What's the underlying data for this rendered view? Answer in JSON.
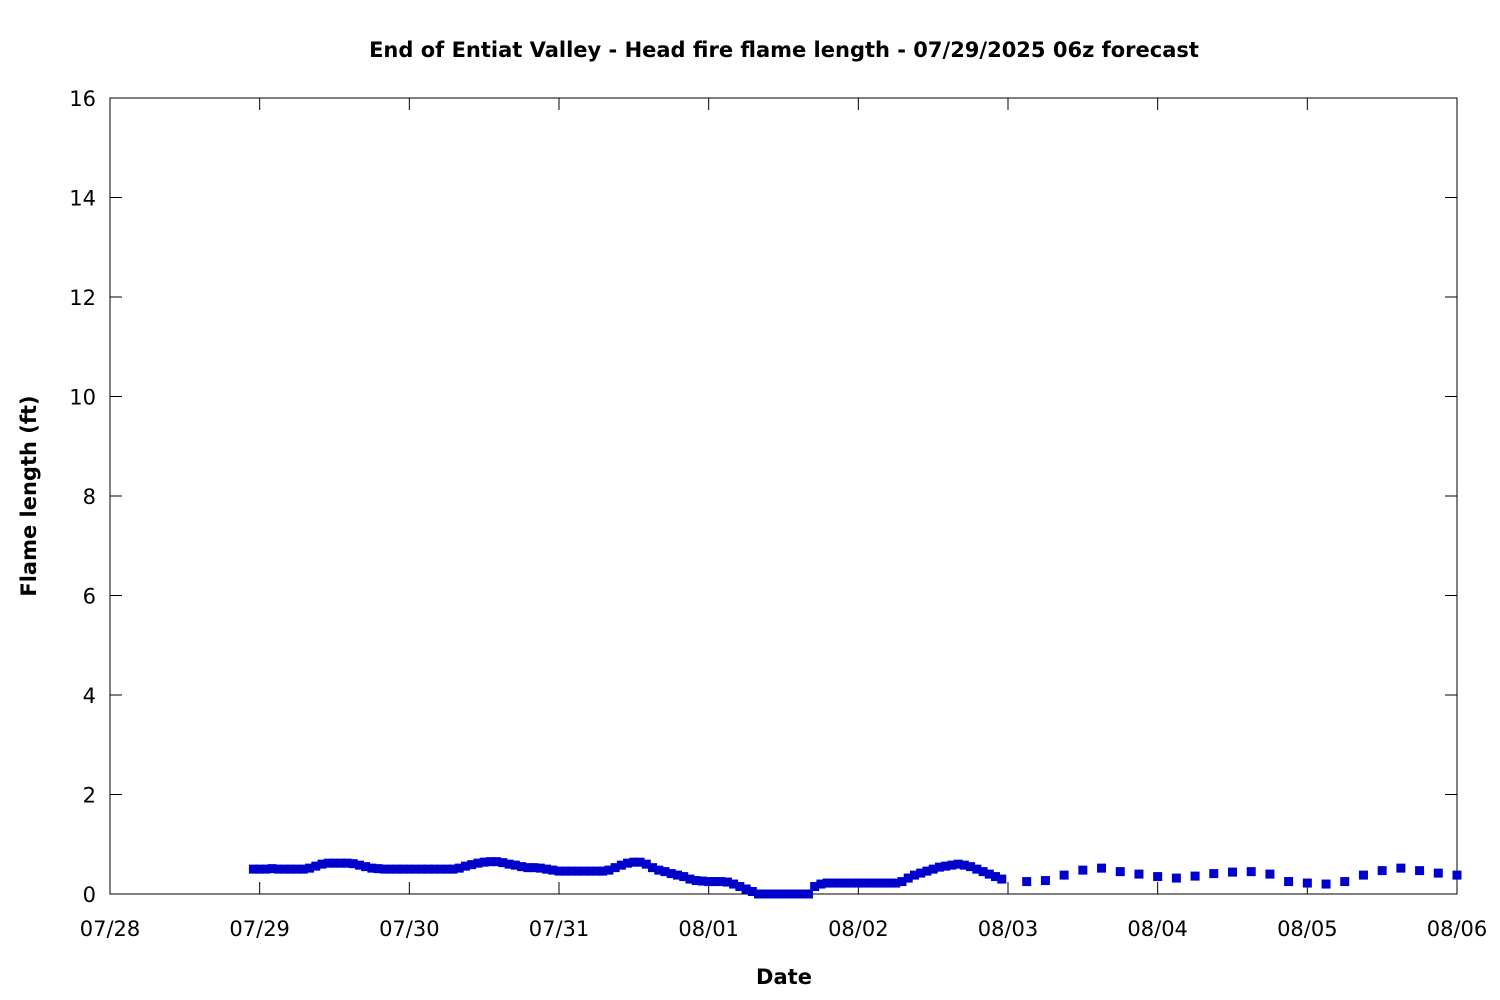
{
  "chart_data": {
    "type": "scatter",
    "title": "End of Entiat Valley - Head fire flame length - 07/29/2025 06z forecast",
    "xlabel": "Date",
    "ylabel": "Flame length (ft)",
    "xlim": [
      "2025-07-28T00:00",
      "2025-08-06T00:00"
    ],
    "ylim": [
      0,
      16
    ],
    "x_ticks": [
      "07/28",
      "07/29",
      "07/30",
      "07/31",
      "08/01",
      "08/02",
      "08/03",
      "08/04",
      "08/05",
      "08/06"
    ],
    "y_ticks": [
      "0",
      "2",
      "4",
      "6",
      "8",
      "10",
      "12",
      "14",
      "16"
    ],
    "grid": false,
    "marker": "square",
    "color": "#0000cc",
    "series": [
      {
        "name": "",
        "points": [
          [
            "2025-07-28T23:00",
            0.5
          ],
          [
            "2025-07-29T00:00",
            0.5
          ],
          [
            "2025-07-29T01:00",
            0.5
          ],
          [
            "2025-07-29T02:00",
            0.51
          ],
          [
            "2025-07-29T03:00",
            0.5
          ],
          [
            "2025-07-29T04:00",
            0.5
          ],
          [
            "2025-07-29T05:00",
            0.5
          ],
          [
            "2025-07-29T06:00",
            0.5
          ],
          [
            "2025-07-29T07:00",
            0.5
          ],
          [
            "2025-07-29T08:00",
            0.52
          ],
          [
            "2025-07-29T09:00",
            0.56
          ],
          [
            "2025-07-29T10:00",
            0.6
          ],
          [
            "2025-07-29T11:00",
            0.62
          ],
          [
            "2025-07-29T12:00",
            0.62
          ],
          [
            "2025-07-29T13:00",
            0.62
          ],
          [
            "2025-07-29T14:00",
            0.62
          ],
          [
            "2025-07-29T15:00",
            0.61
          ],
          [
            "2025-07-29T16:00",
            0.58
          ],
          [
            "2025-07-29T17:00",
            0.55
          ],
          [
            "2025-07-29T18:00",
            0.52
          ],
          [
            "2025-07-29T19:00",
            0.51
          ],
          [
            "2025-07-29T20:00",
            0.5
          ],
          [
            "2025-07-29T21:00",
            0.5
          ],
          [
            "2025-07-29T22:00",
            0.5
          ],
          [
            "2025-07-29T23:00",
            0.5
          ],
          [
            "2025-07-30T00:00",
            0.5
          ],
          [
            "2025-07-30T01:00",
            0.5
          ],
          [
            "2025-07-30T02:00",
            0.5
          ],
          [
            "2025-07-30T03:00",
            0.5
          ],
          [
            "2025-07-30T04:00",
            0.5
          ],
          [
            "2025-07-30T05:00",
            0.5
          ],
          [
            "2025-07-30T06:00",
            0.5
          ],
          [
            "2025-07-30T07:00",
            0.5
          ],
          [
            "2025-07-30T08:00",
            0.52
          ],
          [
            "2025-07-30T09:00",
            0.56
          ],
          [
            "2025-07-30T10:00",
            0.59
          ],
          [
            "2025-07-30T11:00",
            0.62
          ],
          [
            "2025-07-30T12:00",
            0.64
          ],
          [
            "2025-07-30T13:00",
            0.65
          ],
          [
            "2025-07-30T14:00",
            0.65
          ],
          [
            "2025-07-30T15:00",
            0.63
          ],
          [
            "2025-07-30T16:00",
            0.6
          ],
          [
            "2025-07-30T17:00",
            0.58
          ],
          [
            "2025-07-30T18:00",
            0.55
          ],
          [
            "2025-07-30T19:00",
            0.53
          ],
          [
            "2025-07-30T20:00",
            0.53
          ],
          [
            "2025-07-30T21:00",
            0.52
          ],
          [
            "2025-07-30T22:00",
            0.5
          ],
          [
            "2025-07-30T23:00",
            0.48
          ],
          [
            "2025-07-31T00:00",
            0.46
          ],
          [
            "2025-07-31T01:00",
            0.46
          ],
          [
            "2025-07-31T02:00",
            0.46
          ],
          [
            "2025-07-31T03:00",
            0.46
          ],
          [
            "2025-07-31T04:00",
            0.46
          ],
          [
            "2025-07-31T05:00",
            0.46
          ],
          [
            "2025-07-31T06:00",
            0.46
          ],
          [
            "2025-07-31T07:00",
            0.46
          ],
          [
            "2025-07-31T08:00",
            0.48
          ],
          [
            "2025-07-31T09:00",
            0.53
          ],
          [
            "2025-07-31T10:00",
            0.58
          ],
          [
            "2025-07-31T11:00",
            0.62
          ],
          [
            "2025-07-31T12:00",
            0.64
          ],
          [
            "2025-07-31T13:00",
            0.64
          ],
          [
            "2025-07-31T14:00",
            0.6
          ],
          [
            "2025-07-31T15:00",
            0.53
          ],
          [
            "2025-07-31T16:00",
            0.48
          ],
          [
            "2025-07-31T17:00",
            0.45
          ],
          [
            "2025-07-31T18:00",
            0.41
          ],
          [
            "2025-07-31T19:00",
            0.38
          ],
          [
            "2025-07-31T20:00",
            0.35
          ],
          [
            "2025-07-31T21:00",
            0.3
          ],
          [
            "2025-07-31T22:00",
            0.27
          ],
          [
            "2025-07-31T23:00",
            0.26
          ],
          [
            "2025-08-01T00:00",
            0.25
          ],
          [
            "2025-08-01T01:00",
            0.25
          ],
          [
            "2025-08-01T02:00",
            0.25
          ],
          [
            "2025-08-01T03:00",
            0.24
          ],
          [
            "2025-08-01T04:00",
            0.2
          ],
          [
            "2025-08-01T05:00",
            0.15
          ],
          [
            "2025-08-01T06:00",
            0.1
          ],
          [
            "2025-08-01T07:00",
            0.05
          ],
          [
            "2025-08-01T08:00",
            0.0
          ],
          [
            "2025-08-01T09:00",
            0.0
          ],
          [
            "2025-08-01T10:00",
            0.0
          ],
          [
            "2025-08-01T11:00",
            0.0
          ],
          [
            "2025-08-01T12:00",
            0.0
          ],
          [
            "2025-08-01T13:00",
            0.0
          ],
          [
            "2025-08-01T14:00",
            0.0
          ],
          [
            "2025-08-01T15:00",
            0.0
          ],
          [
            "2025-08-01T16:00",
            0.0
          ],
          [
            "2025-08-01T17:00",
            0.15
          ],
          [
            "2025-08-01T18:00",
            0.2
          ],
          [
            "2025-08-01T19:00",
            0.22
          ],
          [
            "2025-08-01T20:00",
            0.22
          ],
          [
            "2025-08-01T21:00",
            0.22
          ],
          [
            "2025-08-01T22:00",
            0.22
          ],
          [
            "2025-08-01T23:00",
            0.22
          ],
          [
            "2025-08-02T00:00",
            0.22
          ],
          [
            "2025-08-02T01:00",
            0.22
          ],
          [
            "2025-08-02T02:00",
            0.22
          ],
          [
            "2025-08-02T03:00",
            0.22
          ],
          [
            "2025-08-02T04:00",
            0.22
          ],
          [
            "2025-08-02T05:00",
            0.22
          ],
          [
            "2025-08-02T06:00",
            0.22
          ],
          [
            "2025-08-02T07:00",
            0.25
          ],
          [
            "2025-08-02T08:00",
            0.32
          ],
          [
            "2025-08-02T09:00",
            0.38
          ],
          [
            "2025-08-02T10:00",
            0.42
          ],
          [
            "2025-08-02T11:00",
            0.46
          ],
          [
            "2025-08-02T12:00",
            0.5
          ],
          [
            "2025-08-02T13:00",
            0.54
          ],
          [
            "2025-08-02T14:00",
            0.56
          ],
          [
            "2025-08-02T15:00",
            0.58
          ],
          [
            "2025-08-02T16:00",
            0.6
          ],
          [
            "2025-08-02T17:00",
            0.58
          ],
          [
            "2025-08-02T18:00",
            0.55
          ],
          [
            "2025-08-02T19:00",
            0.5
          ],
          [
            "2025-08-02T20:00",
            0.45
          ],
          [
            "2025-08-02T21:00",
            0.4
          ],
          [
            "2025-08-02T22:00",
            0.35
          ],
          [
            "2025-08-02T23:00",
            0.3
          ],
          [
            "2025-08-03T03:00",
            0.25
          ],
          [
            "2025-08-03T06:00",
            0.27
          ],
          [
            "2025-08-03T09:00",
            0.38
          ],
          [
            "2025-08-03T12:00",
            0.48
          ],
          [
            "2025-08-03T15:00",
            0.52
          ],
          [
            "2025-08-03T18:00",
            0.45
          ],
          [
            "2025-08-03T21:00",
            0.4
          ],
          [
            "2025-08-04T00:00",
            0.35
          ],
          [
            "2025-08-04T03:00",
            0.32
          ],
          [
            "2025-08-04T06:00",
            0.36
          ],
          [
            "2025-08-04T09:00",
            0.41
          ],
          [
            "2025-08-04T12:00",
            0.44
          ],
          [
            "2025-08-04T15:00",
            0.45
          ],
          [
            "2025-08-04T18:00",
            0.4
          ],
          [
            "2025-08-04T21:00",
            0.25
          ],
          [
            "2025-08-05T00:00",
            0.22
          ],
          [
            "2025-08-05T03:00",
            0.2
          ],
          [
            "2025-08-05T06:00",
            0.25
          ],
          [
            "2025-08-05T09:00",
            0.38
          ],
          [
            "2025-08-05T12:00",
            0.47
          ],
          [
            "2025-08-05T15:00",
            0.52
          ],
          [
            "2025-08-05T18:00",
            0.47
          ],
          [
            "2025-08-05T21:00",
            0.42
          ],
          [
            "2025-08-06T00:00",
            0.38
          ]
        ]
      }
    ]
  }
}
